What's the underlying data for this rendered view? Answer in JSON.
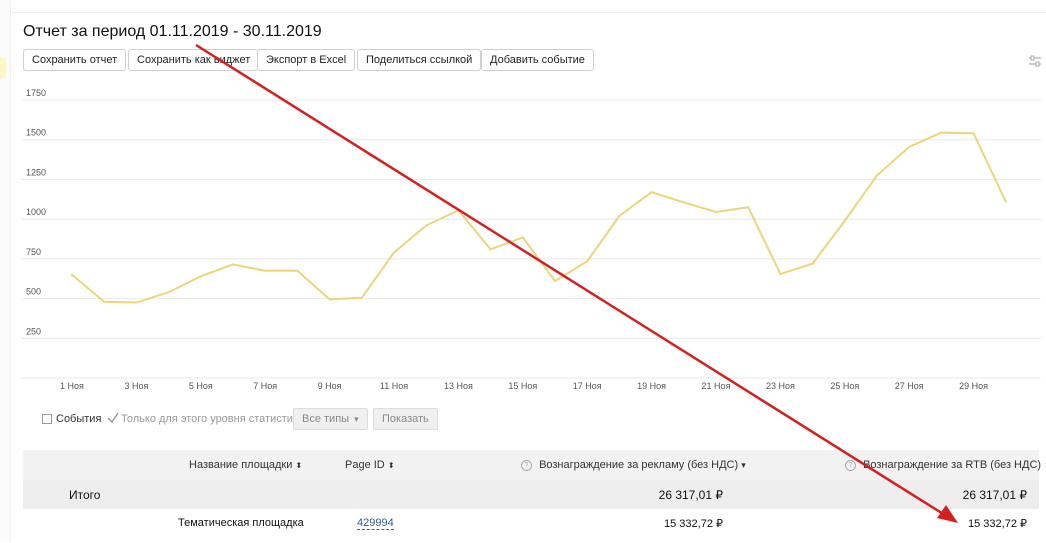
{
  "report": {
    "title": "Отчет за период 01.11.2019 - 30.11.2019"
  },
  "toolbar": {
    "save_report": "Сохранить отчет",
    "save_widget": "Сохранить как виджет",
    "export_excel": "Экспорт в Excel",
    "share_link": "Поделиться ссылкой",
    "add_event": "Добавить событие",
    "settings_icon": "sliders-icon"
  },
  "chart_data": {
    "type": "line",
    "x": [
      "1 Ноя",
      "2 Ноя",
      "3 Ноя",
      "4 Ноя",
      "5 Ноя",
      "6 Ноя",
      "7 Ноя",
      "8 Ноя",
      "9 Ноя",
      "10 Ноя",
      "11 Ноя",
      "12 Ноя",
      "13 Ноя",
      "14 Ноя",
      "15 Ноя",
      "16 Ноя",
      "17 Ноя",
      "18 Ноя",
      "19 Ноя",
      "20 Ноя",
      "21 Ноя",
      "22 Ноя",
      "23 Ноя",
      "24 Ноя",
      "25 Ноя",
      "26 Ноя",
      "27 Ноя",
      "28 Ноя",
      "29 Ноя",
      "30 Ноя"
    ],
    "x_tick_labels": [
      "1 Ноя",
      "3 Ноя",
      "5 Ноя",
      "7 Ноя",
      "9 Ноя",
      "11 Ноя",
      "13 Ноя",
      "15 Ноя",
      "17 Ноя",
      "19 Ноя",
      "21 Ноя",
      "23 Ноя",
      "25 Ноя",
      "27 Ноя",
      "29 Ноя"
    ],
    "y_ticks": [
      250,
      500,
      750,
      1000,
      1250,
      1500,
      1750
    ],
    "ylim": [
      0,
      1750
    ],
    "series": [
      {
        "values": [
          650,
          480,
          475,
          540,
          640,
          715,
          675,
          675,
          495,
          505,
          790,
          960,
          1055,
          810,
          885,
          610,
          735,
          1020,
          1170,
          1105,
          1045,
          1075,
          655,
          720,
          990,
          1275,
          1455,
          1545,
          1540,
          1110
        ]
      }
    ],
    "color": "#ecd57a",
    "grid": true
  },
  "controls": {
    "events_label": "События",
    "only_level_label": "Только для этого уровня статистики",
    "types_select": "Все типы",
    "show_button": "Показать"
  },
  "table": {
    "columns": {
      "site_name": "Название площадки",
      "page_id": "Page ID",
      "reward_ads": "Вознаграждение за рекламу (без НДС)",
      "reward_rtb": "Вознаграждение за RTB (без НДС)"
    },
    "total": {
      "label": "Итого",
      "reward_ads": "26 317,01 ₽",
      "reward_rtb": "26 317,01 ₽"
    },
    "rows": [
      {
        "site_name": "Тематическая площадка",
        "page_id": "429994",
        "reward_ads": "15 332,72 ₽",
        "reward_rtb": "15 332,72 ₽"
      }
    ]
  },
  "annotation": {
    "color": "#d42020"
  }
}
